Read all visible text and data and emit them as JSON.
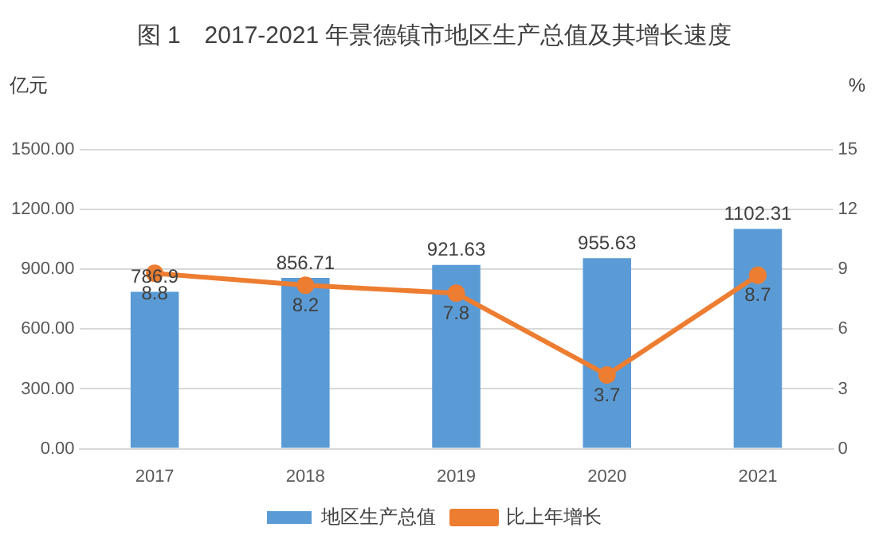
{
  "chart_data": {
    "type": "bar",
    "title": "图 1　2017-2021 年景德镇市地区生产总值及其增长速度",
    "ylabel": "亿元",
    "y2label": "%",
    "categories": [
      "2017",
      "2018",
      "2019",
      "2020",
      "2021"
    ],
    "series": [
      {
        "name": "地区生产总值",
        "color": "#5b9bd5",
        "values": [
          786.9,
          856.71,
          921.63,
          955.63,
          1102.31
        ]
      },
      {
        "name": "比上年增长",
        "type": "line",
        "axis": "y2",
        "color": "#ed7d31",
        "values": [
          8.8,
          8.2,
          7.8,
          3.7,
          8.7
        ]
      }
    ],
    "ylim": [
      0,
      1500
    ],
    "yticks": [
      {
        "value": 0,
        "label": "0.00"
      },
      {
        "value": 300,
        "label": "300.00"
      },
      {
        "value": 600,
        "label": "600.00"
      },
      {
        "value": 900,
        "label": "900.00"
      },
      {
        "value": 1200,
        "label": "1200.00"
      },
      {
        "value": 1500,
        "label": "1500.00"
      }
    ],
    "y2lim": [
      0,
      15
    ],
    "y2ticks": [
      0,
      3,
      6,
      9,
      12,
      15
    ],
    "grid": "y",
    "legend": "bottom",
    "data_labels": true,
    "marker": "circle",
    "line_style": "solid"
  }
}
